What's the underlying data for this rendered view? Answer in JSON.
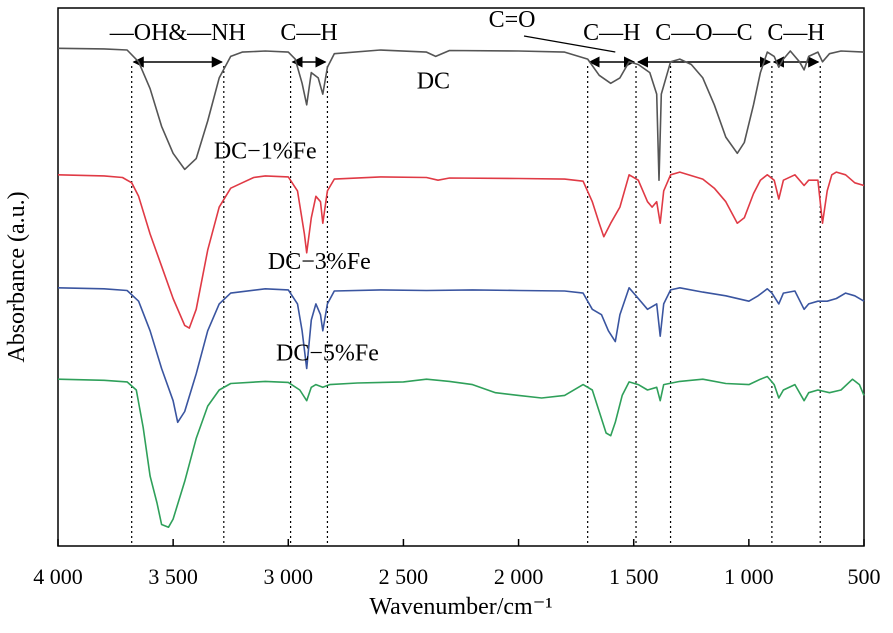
{
  "chart_data": {
    "type": "line",
    "title": "",
    "xlabel": "Wavenumber/cm⁻¹",
    "ylabel": "Absorbance (a.u.)",
    "x_reversed": true,
    "xlim": [
      4000,
      500
    ],
    "xticks": [
      {
        "value": 4000,
        "label": "4 000"
      },
      {
        "value": 3500,
        "label": "3 500"
      },
      {
        "value": 3000,
        "label": "3 000"
      },
      {
        "value": 2500,
        "label": "2 500"
      },
      {
        "value": 2000,
        "label": "2 000"
      },
      {
        "value": 1500,
        "label": "1 500"
      },
      {
        "value": 1000,
        "label": "1 000"
      },
      {
        "value": 500,
        "label": "500"
      }
    ],
    "y_ticks_shown": false,
    "grid": false,
    "legend": "none",
    "series": [
      {
        "name": "DC",
        "color": "#555555",
        "label_at": [
          2370,
          0.85
        ],
        "points": [
          [
            4000,
            0.925
          ],
          [
            3800,
            0.924
          ],
          [
            3700,
            0.922
          ],
          [
            3650,
            0.9
          ],
          [
            3600,
            0.85
          ],
          [
            3550,
            0.78
          ],
          [
            3500,
            0.73
          ],
          [
            3450,
            0.7
          ],
          [
            3400,
            0.72
          ],
          [
            3350,
            0.79
          ],
          [
            3300,
            0.87
          ],
          [
            3250,
            0.91
          ],
          [
            3200,
            0.918
          ],
          [
            3100,
            0.92
          ],
          [
            3000,
            0.918
          ],
          [
            2970,
            0.905
          ],
          [
            2940,
            0.86
          ],
          [
            2920,
            0.82
          ],
          [
            2900,
            0.88
          ],
          [
            2870,
            0.87
          ],
          [
            2850,
            0.84
          ],
          [
            2830,
            0.89
          ],
          [
            2800,
            0.915
          ],
          [
            2600,
            0.922
          ],
          [
            2400,
            0.918
          ],
          [
            2360,
            0.91
          ],
          [
            2300,
            0.921
          ],
          [
            2000,
            0.92
          ],
          [
            1800,
            0.918
          ],
          [
            1700,
            0.905
          ],
          [
            1650,
            0.875
          ],
          [
            1600,
            0.86
          ],
          [
            1560,
            0.87
          ],
          [
            1520,
            0.9
          ],
          [
            1480,
            0.895
          ],
          [
            1430,
            0.88
          ],
          [
            1400,
            0.84
          ],
          [
            1390,
            0.68
          ],
          [
            1380,
            0.84
          ],
          [
            1340,
            0.9
          ],
          [
            1300,
            0.905
          ],
          [
            1250,
            0.895
          ],
          [
            1200,
            0.87
          ],
          [
            1150,
            0.82
          ],
          [
            1100,
            0.76
          ],
          [
            1050,
            0.73
          ],
          [
            1020,
            0.75
          ],
          [
            980,
            0.82
          ],
          [
            950,
            0.88
          ],
          [
            920,
            0.918
          ],
          [
            890,
            0.91
          ],
          [
            870,
            0.89
          ],
          [
            850,
            0.905
          ],
          [
            820,
            0.92
          ],
          [
            780,
            0.9
          ],
          [
            760,
            0.885
          ],
          [
            740,
            0.91
          ],
          [
            700,
            0.918
          ],
          [
            680,
            0.9
          ],
          [
            650,
            0.915
          ],
          [
            600,
            0.92
          ],
          [
            500,
            0.918
          ]
        ]
      },
      {
        "name": "DC−1%Fe",
        "color": "#e03a45",
        "label_at": [
          3100,
          0.72
        ],
        "points": [
          [
            4000,
            0.69
          ],
          [
            3800,
            0.688
          ],
          [
            3720,
            0.685
          ],
          [
            3680,
            0.675
          ],
          [
            3650,
            0.65
          ],
          [
            3600,
            0.58
          ],
          [
            3550,
            0.52
          ],
          [
            3500,
            0.46
          ],
          [
            3450,
            0.41
          ],
          [
            3430,
            0.405
          ],
          [
            3400,
            0.44
          ],
          [
            3350,
            0.55
          ],
          [
            3300,
            0.63
          ],
          [
            3250,
            0.665
          ],
          [
            3200,
            0.675
          ],
          [
            3150,
            0.685
          ],
          [
            3100,
            0.688
          ],
          [
            3000,
            0.686
          ],
          [
            2960,
            0.66
          ],
          [
            2930,
            0.58
          ],
          [
            2920,
            0.545
          ],
          [
            2900,
            0.61
          ],
          [
            2880,
            0.65
          ],
          [
            2860,
            0.64
          ],
          [
            2850,
            0.6
          ],
          [
            2830,
            0.66
          ],
          [
            2800,
            0.682
          ],
          [
            2600,
            0.686
          ],
          [
            2400,
            0.685
          ],
          [
            2350,
            0.68
          ],
          [
            2300,
            0.684
          ],
          [
            2000,
            0.683
          ],
          [
            1800,
            0.682
          ],
          [
            1720,
            0.678
          ],
          [
            1680,
            0.64
          ],
          [
            1650,
            0.6
          ],
          [
            1630,
            0.575
          ],
          [
            1600,
            0.6
          ],
          [
            1560,
            0.63
          ],
          [
            1520,
            0.69
          ],
          [
            1480,
            0.68
          ],
          [
            1440,
            0.64
          ],
          [
            1420,
            0.63
          ],
          [
            1400,
            0.64
          ],
          [
            1385,
            0.6
          ],
          [
            1370,
            0.66
          ],
          [
            1340,
            0.69
          ],
          [
            1300,
            0.695
          ],
          [
            1200,
            0.682
          ],
          [
            1150,
            0.665
          ],
          [
            1100,
            0.64
          ],
          [
            1050,
            0.6
          ],
          [
            1020,
            0.61
          ],
          [
            980,
            0.655
          ],
          [
            950,
            0.68
          ],
          [
            920,
            0.69
          ],
          [
            890,
            0.68
          ],
          [
            870,
            0.645
          ],
          [
            850,
            0.68
          ],
          [
            800,
            0.69
          ],
          [
            760,
            0.67
          ],
          [
            740,
            0.68
          ],
          [
            700,
            0.68
          ],
          [
            680,
            0.6
          ],
          [
            660,
            0.66
          ],
          [
            640,
            0.69
          ],
          [
            620,
            0.695
          ],
          [
            580,
            0.69
          ],
          [
            540,
            0.675
          ],
          [
            500,
            0.67
          ]
        ]
      },
      {
        "name": "DC−3%Fe",
        "color": "#3a55a0",
        "label_at": [
          2865,
          0.515
        ],
        "points": [
          [
            4000,
            0.48
          ],
          [
            3800,
            0.478
          ],
          [
            3700,
            0.475
          ],
          [
            3650,
            0.455
          ],
          [
            3600,
            0.4
          ],
          [
            3550,
            0.33
          ],
          [
            3500,
            0.27
          ],
          [
            3480,
            0.23
          ],
          [
            3450,
            0.25
          ],
          [
            3400,
            0.32
          ],
          [
            3350,
            0.4
          ],
          [
            3300,
            0.45
          ],
          [
            3250,
            0.47
          ],
          [
            3100,
            0.478
          ],
          [
            3000,
            0.476
          ],
          [
            2960,
            0.45
          ],
          [
            2940,
            0.4
          ],
          [
            2920,
            0.33
          ],
          [
            2900,
            0.42
          ],
          [
            2880,
            0.45
          ],
          [
            2860,
            0.43
          ],
          [
            2850,
            0.4
          ],
          [
            2830,
            0.45
          ],
          [
            2800,
            0.474
          ],
          [
            2600,
            0.476
          ],
          [
            2400,
            0.475
          ],
          [
            2200,
            0.476
          ],
          [
            2000,
            0.475
          ],
          [
            1800,
            0.474
          ],
          [
            1720,
            0.47
          ],
          [
            1680,
            0.44
          ],
          [
            1640,
            0.43
          ],
          [
            1610,
            0.4
          ],
          [
            1580,
            0.38
          ],
          [
            1560,
            0.43
          ],
          [
            1520,
            0.48
          ],
          [
            1480,
            0.46
          ],
          [
            1440,
            0.44
          ],
          [
            1400,
            0.45
          ],
          [
            1385,
            0.39
          ],
          [
            1370,
            0.45
          ],
          [
            1340,
            0.476
          ],
          [
            1300,
            0.48
          ],
          [
            1200,
            0.472
          ],
          [
            1100,
            0.465
          ],
          [
            1000,
            0.455
          ],
          [
            960,
            0.465
          ],
          [
            920,
            0.478
          ],
          [
            900,
            0.47
          ],
          [
            870,
            0.45
          ],
          [
            850,
            0.47
          ],
          [
            800,
            0.474
          ],
          [
            760,
            0.44
          ],
          [
            740,
            0.45
          ],
          [
            700,
            0.455
          ],
          [
            660,
            0.455
          ],
          [
            620,
            0.46
          ],
          [
            580,
            0.47
          ],
          [
            540,
            0.465
          ],
          [
            500,
            0.455
          ]
        ]
      },
      {
        "name": "DC−5%Fe",
        "color": "#2fa05a",
        "label_at": [
          2830,
          0.345
        ],
        "points": [
          [
            4000,
            0.31
          ],
          [
            3800,
            0.308
          ],
          [
            3700,
            0.305
          ],
          [
            3660,
            0.29
          ],
          [
            3630,
            0.22
          ],
          [
            3600,
            0.13
          ],
          [
            3570,
            0.08
          ],
          [
            3550,
            0.04
          ],
          [
            3520,
            0.035
          ],
          [
            3500,
            0.05
          ],
          [
            3450,
            0.12
          ],
          [
            3400,
            0.2
          ],
          [
            3350,
            0.26
          ],
          [
            3300,
            0.29
          ],
          [
            3250,
            0.302
          ],
          [
            3100,
            0.306
          ],
          [
            3000,
            0.304
          ],
          [
            2950,
            0.29
          ],
          [
            2920,
            0.27
          ],
          [
            2900,
            0.295
          ],
          [
            2880,
            0.3
          ],
          [
            2850,
            0.295
          ],
          [
            2820,
            0.3
          ],
          [
            2700,
            0.303
          ],
          [
            2500,
            0.305
          ],
          [
            2400,
            0.31
          ],
          [
            2300,
            0.306
          ],
          [
            2200,
            0.3
          ],
          [
            2100,
            0.285
          ],
          [
            2000,
            0.28
          ],
          [
            1900,
            0.275
          ],
          [
            1800,
            0.28
          ],
          [
            1720,
            0.3
          ],
          [
            1680,
            0.29
          ],
          [
            1650,
            0.25
          ],
          [
            1620,
            0.21
          ],
          [
            1600,
            0.205
          ],
          [
            1580,
            0.23
          ],
          [
            1550,
            0.28
          ],
          [
            1520,
            0.305
          ],
          [
            1480,
            0.3
          ],
          [
            1440,
            0.29
          ],
          [
            1400,
            0.295
          ],
          [
            1385,
            0.27
          ],
          [
            1370,
            0.3
          ],
          [
            1300,
            0.306
          ],
          [
            1200,
            0.31
          ],
          [
            1100,
            0.302
          ],
          [
            1000,
            0.3
          ],
          [
            950,
            0.31
          ],
          [
            920,
            0.315
          ],
          [
            890,
            0.3
          ],
          [
            870,
            0.275
          ],
          [
            850,
            0.29
          ],
          [
            800,
            0.3
          ],
          [
            760,
            0.27
          ],
          [
            740,
            0.285
          ],
          [
            700,
            0.29
          ],
          [
            650,
            0.285
          ],
          [
            600,
            0.29
          ],
          [
            550,
            0.31
          ],
          [
            520,
            0.3
          ],
          [
            500,
            0.28
          ]
        ]
      }
    ],
    "reference_lines": [
      3680,
      3280,
      2990,
      2830,
      1700,
      1490,
      1340,
      900,
      690
    ],
    "annotations": [
      {
        "text": "—OH&—NH",
        "from": 3680,
        "to": 3280
      },
      {
        "text": "C—H",
        "from": 2990,
        "to": 2830
      },
      {
        "text": "C—H",
        "from": 1700,
        "to": 1490
      },
      {
        "text": "C—O—C",
        "from": 1490,
        "to": 900
      },
      {
        "text": "C—H",
        "from": 900,
        "to": 690
      },
      {
        "text": "C=O",
        "pointer_to": 1580
      }
    ]
  }
}
